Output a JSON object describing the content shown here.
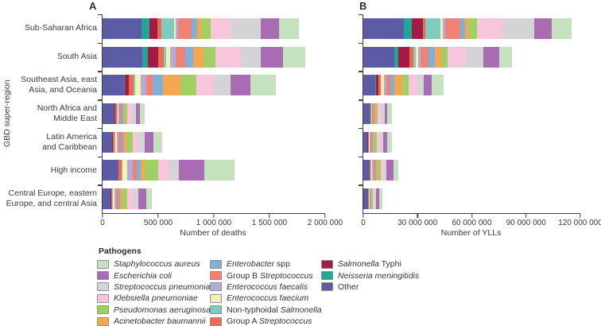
{
  "axis": {
    "y_title": "GBD super-region"
  },
  "chart_data": {
    "type": "bar",
    "variant": "horizontal-stacked",
    "grid": false,
    "legend_position": "bottom",
    "categories": [
      "Sub-Saharan Africa",
      "South Asia",
      "Southeast Asia, east Asia, and Oceania",
      "North Africa and Middle East",
      "Latin America and Caribbean",
      "High income",
      "Central Europe, eastern Europe, and central Asia"
    ],
    "stack_order": [
      "Other",
      "Neisseria meningitidis",
      "Salmonella Typhi",
      "Group A Streptococcus",
      "Non-typhoidal Salmonella",
      "Enterococcus faecium",
      "Enterococcus faecalis",
      "Group B Streptococcus",
      "Enterobacter spp",
      "Acinetobacter baumannii",
      "Pseudomonas aeruginosa",
      "Klebsiella pneumoniae",
      "Streptococcus pneumoniae",
      "Escherichia coli",
      "Staphylococcus aureus"
    ],
    "panels": [
      {
        "label": "A",
        "xlabel": "Number of deaths",
        "xlim": [
          0,
          2000000
        ],
        "xticks": [
          0,
          500000,
          1000000,
          1500000,
          2000000
        ],
        "xtick_labels": [
          "0",
          "500 000",
          "1 000 000",
          "1 500 000",
          "2 000 000"
        ],
        "series_key": "deaths"
      },
      {
        "label": "B",
        "xlabel": "Number of YLLs",
        "xlim": [
          0,
          120000000
        ],
        "xticks": [
          0,
          30000000,
          60000000,
          90000000,
          120000000
        ],
        "xtick_labels": [
          "0",
          "30 000 000",
          "60 000 000",
          "90 000 000",
          "120 000 000"
        ],
        "series_key": "ylls"
      }
    ],
    "deaths": [
      [
        350000,
        70000,
        70000,
        40000,
        115000,
        15000,
        20000,
        120000,
        50000,
        35000,
        85000,
        180000,
        270000,
        165000,
        180000
      ],
      [
        360000,
        45000,
        95000,
        50000,
        25000,
        30000,
        55000,
        85000,
        70000,
        95000,
        105000,
        225000,
        180000,
        200000,
        200000
      ],
      [
        190000,
        10000,
        35000,
        45000,
        10000,
        55000,
        50000,
        55000,
        95000,
        155000,
        140000,
        165000,
        145000,
        180000,
        225000
      ],
      [
        105000,
        5000,
        8000,
        10000,
        5000,
        7000,
        10000,
        15000,
        18000,
        18000,
        22000,
        43000,
        36000,
        32000,
        46000
      ],
      [
        85000,
        4000,
        4000,
        14000,
        7000,
        18000,
        14000,
        25000,
        25000,
        25000,
        50000,
        50000,
        57000,
        79000,
        79000
      ],
      [
        140000,
        2000,
        2000,
        25000,
        7000,
        48000,
        48000,
        36000,
        36000,
        36000,
        118000,
        95000,
        95000,
        225000,
        272000
      ],
      [
        70000,
        4000,
        2000,
        10000,
        4000,
        18000,
        14000,
        18000,
        18000,
        21000,
        43000,
        57000,
        46000,
        71000,
        50000
      ]
    ],
    "ylls": [
      [
        22500000,
        4500000,
        6000000,
        1500000,
        8000000,
        1300000,
        1700000,
        8000000,
        3000000,
        2200000,
        4400000,
        14000000,
        17500000,
        9500000,
        11000000
      ],
      [
        17000000,
        2200000,
        6500000,
        2200000,
        1300000,
        1200000,
        1200000,
        4400000,
        3600000,
        3600000,
        3600000,
        10000000,
        9500000,
        8800000,
        7300000
      ],
      [
        6600000,
        400000,
        1500000,
        1000000,
        400000,
        1500000,
        1500000,
        2200000,
        2200000,
        4400000,
        3600000,
        4400000,
        3600000,
        4400000,
        6600000
      ],
      [
        3600000,
        150000,
        200000,
        450000,
        150000,
        200000,
        200000,
        650000,
        650000,
        650000,
        900000,
        2200000,
        1800000,
        1500000,
        2400000
      ],
      [
        2200000,
        150000,
        150000,
        500000,
        200000,
        300000,
        300000,
        750000,
        750000,
        750000,
        1300000,
        2000000,
        1800000,
        2200000,
        2600000
      ],
      [
        3300000,
        50000,
        50000,
        700000,
        100000,
        800000,
        800000,
        700000,
        700000,
        700000,
        1900000,
        1600000,
        1600000,
        3900000,
        2600000
      ],
      [
        2600000,
        100000,
        50000,
        300000,
        100000,
        300000,
        250000,
        300000,
        300000,
        350000,
        800000,
        1000000,
        800000,
        1750000,
        1500000
      ]
    ]
  },
  "region_label_lines": [
    [
      "Sub-Saharan Africa"
    ],
    [
      "South Asia"
    ],
    [
      "Southeast Asia, east",
      "Asia, and Oceania"
    ],
    [
      "North Africa and",
      "Middle East"
    ],
    [
      "Latin America",
      "and Caribbean"
    ],
    [
      "High income"
    ],
    [
      "Central Europe, eastern",
      "Europe, and central Asia"
    ]
  ],
  "colors": {
    "Other": "#5b5ba6",
    "Neisseria meningitidis": "#23a696",
    "Salmonella Typhi": "#a31b47",
    "Group A Streptococcus": "#ee6a50",
    "Non-typhoidal Salmonella": "#7fccbf",
    "Enterococcus faecium": "#f4f1b6",
    "Enterococcus faecalis": "#b2abd6",
    "Group B Streptococcus": "#ef8373",
    "Enterobacter spp": "#7eb1d8",
    "Acinetobacter baumannii": "#f4a651",
    "Pseudomonas aeruginosa": "#a0cf63",
    "Klebsiella pneumoniae": "#f7c6dc",
    "Streptococcus pneumoniae": "#d4d4d6",
    "Escherichia coli": "#a76cb1",
    "Staphylococcus aureus": "#c6e1bd"
  },
  "legend": {
    "title": "Pathogens",
    "columns": [
      [
        {
          "name": "Staphylococcus aureus",
          "parts": [
            [
              "Staphylococcus aureus",
              true
            ]
          ]
        },
        {
          "name": "Escherichia coli",
          "parts": [
            [
              "Escherichia coli",
              true
            ]
          ]
        },
        {
          "name": "Streptococcus pneumoniae",
          "parts": [
            [
              "Streptococcus pneumoniae",
              true
            ]
          ]
        },
        {
          "name": "Klebsiella pneumoniae",
          "parts": [
            [
              "Klebsiella pneumoniae",
              true
            ]
          ]
        },
        {
          "name": "Pseudomonas aeruginosa",
          "parts": [
            [
              "Pseudomonas aeruginosa",
              true
            ]
          ]
        },
        {
          "name": "Acinetobacter baumannii",
          "parts": [
            [
              "Acinetobacter baumannii",
              true
            ]
          ]
        }
      ],
      [
        {
          "name": "Enterobacter spp",
          "parts": [
            [
              "Enterobacter",
              true
            ],
            [
              " spp",
              false
            ]
          ]
        },
        {
          "name": "Group B Streptococcus",
          "parts": [
            [
              "Group B ",
              false
            ],
            [
              "Streptococcus",
              true
            ]
          ]
        },
        {
          "name": "Enterococcus faecalis",
          "parts": [
            [
              "Enterococcus faecalis",
              true
            ]
          ]
        },
        {
          "name": "Enterococcus faecium",
          "parts": [
            [
              "Enterococcus faecium",
              true
            ]
          ]
        },
        {
          "name": "Non-typhoidal Salmonella",
          "parts": [
            [
              "Non-typhoidal ",
              false
            ],
            [
              "Salmonella",
              true
            ]
          ]
        },
        {
          "name": "Group A Streptococcus",
          "parts": [
            [
              "Group A ",
              false
            ],
            [
              "Streptococcus",
              true
            ]
          ]
        }
      ],
      [
        {
          "name": "Salmonella Typhi",
          "parts": [
            [
              "Salmonella",
              true
            ],
            [
              " Typhi",
              false
            ]
          ]
        },
        {
          "name": "Neisseria meningitidis",
          "parts": [
            [
              "Neisseria meningitidis",
              true
            ]
          ]
        },
        {
          "name": "Other",
          "parts": [
            [
              "Other",
              false
            ]
          ]
        }
      ]
    ]
  }
}
